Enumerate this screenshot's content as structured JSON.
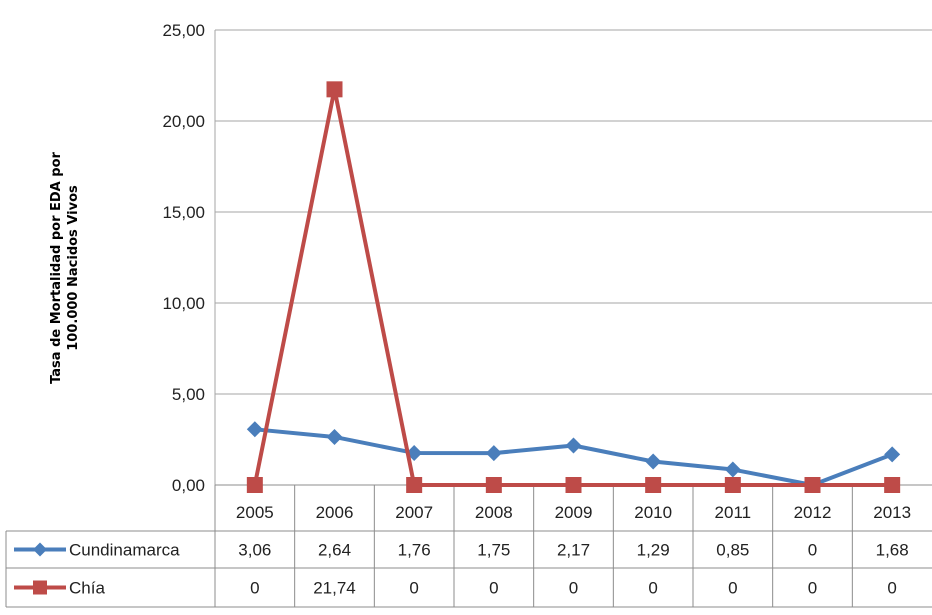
{
  "chart_data": {
    "type": "line",
    "title": "",
    "ylabel_line1": "Tasa de Mortalidad por EDA  por",
    "ylabel_line2": "100.000 Nacidos Vivos",
    "xlabel": "",
    "categories": [
      "2005",
      "2006",
      "2007",
      "2008",
      "2009",
      "2010",
      "2011",
      "2012",
      "2013"
    ],
    "yticks": [
      "0,00",
      "5,00",
      "10,00",
      "15,00",
      "20,00",
      "25,00"
    ],
    "ylim": [
      0,
      25
    ],
    "grid": true,
    "legend": "data-table",
    "series": [
      {
        "name": "Cundinamarca",
        "color": "#4a7ebb",
        "marker": "diamond",
        "values": [
          3.06,
          2.64,
          1.76,
          1.75,
          2.17,
          1.29,
          0.85,
          0,
          1.68
        ],
        "labels": [
          "3,06",
          "2,64",
          "1,76",
          "1,75",
          "2,17",
          "1,29",
          "0,85",
          "0",
          "1,68"
        ]
      },
      {
        "name": "Chía",
        "color": "#be4b48",
        "marker": "square",
        "values": [
          0,
          21.74,
          0,
          0,
          0,
          0,
          0,
          0,
          0
        ],
        "labels": [
          "0",
          "21,74",
          "0",
          "0",
          "0",
          "0",
          "0",
          "0",
          "0"
        ]
      }
    ]
  }
}
